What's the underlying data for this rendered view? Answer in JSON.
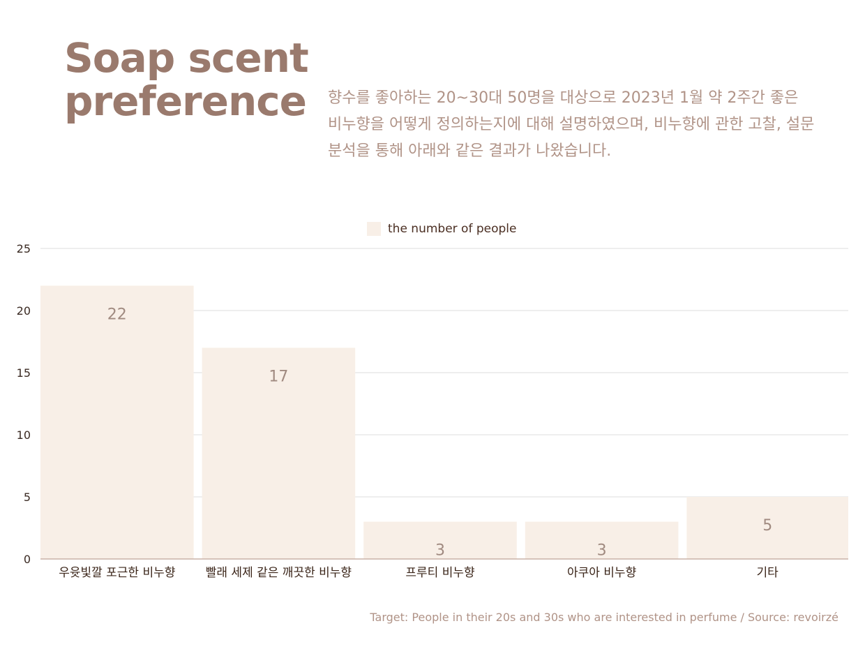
{
  "header": {
    "title": "Soap scent preference",
    "description": "향수를 좋아하는 20~30대 50명을 대상으로 2023년 1월 약 2주간 좋은 비누향을 어떻게 정의하는지에 대해 설명하였으며, 비누향에 관한 고찰, 설문 분석을 통해 아래와 같은 결과가 나왔습니다."
  },
  "footer": {
    "source": "Target: People in their 20s and 30s who are interested in perfume / Source: revoirzé"
  },
  "colors": {
    "bar": "#f8efe7",
    "title": "#9a7a6d",
    "grid": "#dcdcdc",
    "axis": "#c9b2a7"
  },
  "chart_data": {
    "type": "bar",
    "categories": [
      "우윳빛깔 포근한 비누향",
      "빨래 세제 같은 깨끗한 비누향",
      "프루티 비누향",
      "아쿠아 비누향",
      "기타"
    ],
    "series": [
      {
        "name": "the number of people",
        "values": [
          22,
          17,
          3,
          3,
          5
        ]
      }
    ],
    "ylim": [
      0,
      25
    ],
    "yticks": [
      0,
      5,
      10,
      15,
      20,
      25
    ],
    "grid": true,
    "legend": "top-center",
    "data_labels": true
  }
}
